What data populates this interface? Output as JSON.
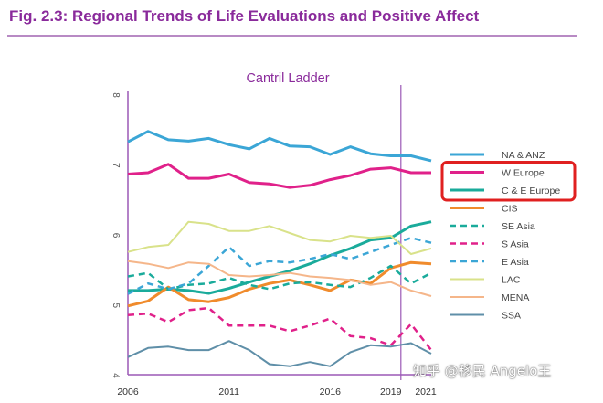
{
  "figure_title": "Fig. 2.3: Regional Trends of Life Evaluations and Positive Affect",
  "watermark": "知乎 @移民 Angelo王",
  "colors": {
    "accent": "#8a2a9b",
    "highlight_box": "#e02020",
    "axis": "#9b59b6"
  },
  "chart_data": {
    "type": "line",
    "title": "Cantril Ladder",
    "xlabel": "",
    "ylabel": "",
    "xlim": [
      2006,
      2021
    ],
    "ylim": [
      4,
      8
    ],
    "x_tick_labels": [
      "2006",
      "2011",
      "2016",
      "2019",
      "2021"
    ],
    "y_tick_labels": [
      "4",
      "5",
      "6",
      "7",
      "8"
    ],
    "reference_line_x": 2019.5,
    "highlighted_series": [
      "W Europe",
      "C & E Europe"
    ],
    "x": [
      2006,
      2007,
      2008,
      2009,
      2010,
      2011,
      2012,
      2013,
      2014,
      2015,
      2016,
      2017,
      2018,
      2019,
      2020,
      2021
    ],
    "series": [
      {
        "name": "NA & ANZ",
        "color": "#3ba6d6",
        "dash": "solid",
        "width": 3,
        "values": [
          7.32,
          7.47,
          7.35,
          7.33,
          7.37,
          7.28,
          7.22,
          7.37,
          7.26,
          7.25,
          7.14,
          7.25,
          7.15,
          7.12,
          7.12,
          7.05
        ]
      },
      {
        "name": "W Europe",
        "color": "#e0218a",
        "dash": "solid",
        "width": 3,
        "values": [
          6.86,
          6.88,
          7.0,
          6.8,
          6.8,
          6.86,
          6.74,
          6.72,
          6.67,
          6.7,
          6.78,
          6.84,
          6.93,
          6.95,
          6.88,
          6.88
        ]
      },
      {
        "name": "C & E Europe",
        "color": "#1aab9b",
        "dash": "solid",
        "width": 3,
        "values": [
          5.2,
          5.2,
          5.22,
          5.2,
          5.16,
          5.23,
          5.32,
          5.4,
          5.48,
          5.58,
          5.7,
          5.8,
          5.92,
          5.95,
          6.12,
          6.18
        ]
      },
      {
        "name": "CIS",
        "color": "#f08b2c",
        "dash": "solid",
        "width": 3,
        "values": [
          4.98,
          5.05,
          5.25,
          5.07,
          5.04,
          5.1,
          5.22,
          5.3,
          5.35,
          5.28,
          5.2,
          5.35,
          5.3,
          5.52,
          5.6,
          5.58
        ]
      },
      {
        "name": "SE Asia",
        "color": "#1aab9b",
        "dash": "dashed",
        "width": 2.5,
        "values": [
          5.4,
          5.45,
          5.22,
          5.28,
          5.3,
          5.38,
          5.28,
          5.22,
          5.3,
          5.32,
          5.28,
          5.25,
          5.38,
          5.55,
          5.3,
          5.45
        ]
      },
      {
        "name": "S Asia",
        "color": "#e0218a",
        "dash": "dashed",
        "width": 2.5,
        "values": [
          4.85,
          4.87,
          4.75,
          4.92,
          4.95,
          4.7,
          4.7,
          4.7,
          4.62,
          4.7,
          4.8,
          4.55,
          4.52,
          4.42,
          4.72,
          4.35
        ]
      },
      {
        "name": "E Asia",
        "color": "#3ba6d6",
        "dash": "dashed",
        "width": 2.5,
        "values": [
          5.15,
          5.3,
          5.22,
          5.3,
          5.55,
          5.82,
          5.55,
          5.62,
          5.6,
          5.65,
          5.72,
          5.65,
          5.75,
          5.85,
          5.95,
          5.88
        ]
      },
      {
        "name": "LAC",
        "color": "#d9e28a",
        "dash": "solid",
        "width": 2,
        "values": [
          5.75,
          5.82,
          5.85,
          6.18,
          6.15,
          6.05,
          6.05,
          6.12,
          6.02,
          5.92,
          5.9,
          5.98,
          5.95,
          5.98,
          5.72,
          5.8
        ]
      },
      {
        "name": "MENA",
        "color": "#f5b68a",
        "dash": "solid",
        "width": 2,
        "values": [
          5.62,
          5.58,
          5.52,
          5.6,
          5.58,
          5.42,
          5.4,
          5.42,
          5.45,
          5.4,
          5.38,
          5.35,
          5.28,
          5.32,
          5.2,
          5.12
        ]
      },
      {
        "name": "SSA",
        "color": "#5f8fa8",
        "dash": "solid",
        "width": 2,
        "values": [
          4.25,
          4.38,
          4.4,
          4.35,
          4.35,
          4.48,
          4.35,
          4.15,
          4.12,
          4.18,
          4.12,
          4.32,
          4.42,
          4.4,
          4.45,
          4.3
        ]
      }
    ]
  }
}
